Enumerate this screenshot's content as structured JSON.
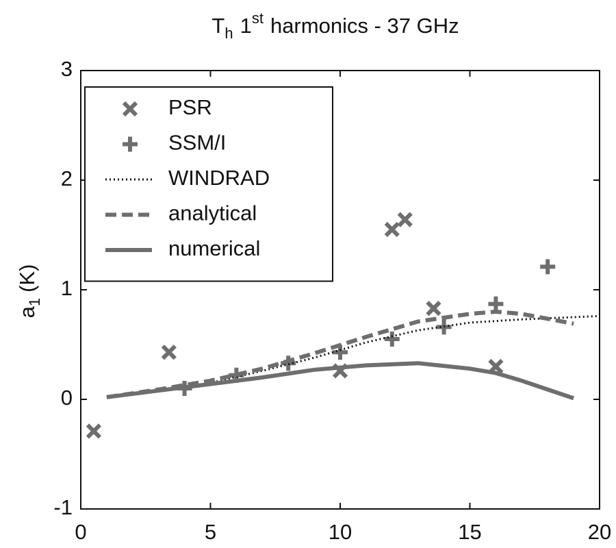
{
  "chart_data": {
    "type": "mixed",
    "title": [
      "T",
      "h",
      "1",
      "st",
      "harmonics - 37 GHz"
    ],
    "ylabel": [
      "a",
      "1",
      "(K)"
    ],
    "xlim": [
      0,
      20
    ],
    "xticks": [
      0,
      5,
      10,
      15,
      20
    ],
    "ylim": [
      -1,
      3
    ],
    "yticks": [
      -1,
      0,
      1,
      2,
      3
    ],
    "legend": "top-left",
    "series": [
      {
        "name": "PSR",
        "type": "scatter",
        "marker": "x",
        "color": "#6e6e6e",
        "x": [
          0.5,
          3.4,
          10,
          12,
          12.5,
          13.6,
          16
        ],
        "values": [
          -0.29,
          0.43,
          0.26,
          1.55,
          1.64,
          0.83,
          0.3
        ]
      },
      {
        "name": "SSM/I",
        "type": "scatter",
        "marker": "+",
        "color": "#6e6e6e",
        "x": [
          4,
          6,
          8,
          10,
          12,
          14,
          16,
          18
        ],
        "values": [
          0.1,
          0.22,
          0.33,
          0.43,
          0.55,
          0.66,
          0.87,
          1.21
        ]
      },
      {
        "name": "WINDRAD",
        "type": "line",
        "dash": "dotted",
        "color": "#111111",
        "x": [
          1,
          3,
          5,
          7,
          9,
          11,
          13,
          15,
          17,
          20
        ],
        "values": [
          0.02,
          0.08,
          0.15,
          0.26,
          0.38,
          0.52,
          0.63,
          0.7,
          0.73,
          0.76
        ]
      },
      {
        "name": "analytical",
        "type": "line",
        "dash": "dashed",
        "color": "#6e6e6e",
        "x": [
          1,
          3,
          5,
          7,
          9,
          11,
          13,
          15,
          16,
          17,
          19
        ],
        "values": [
          0.02,
          0.09,
          0.17,
          0.28,
          0.42,
          0.57,
          0.71,
          0.78,
          0.8,
          0.78,
          0.69
        ]
      },
      {
        "name": "numerical",
        "type": "line",
        "dash": "solid",
        "color": "#6e6e6e",
        "x": [
          1,
          3,
          5,
          7,
          9,
          11,
          13,
          15,
          16,
          17,
          18,
          19
        ],
        "values": [
          0.02,
          0.08,
          0.14,
          0.2,
          0.27,
          0.31,
          0.33,
          0.28,
          0.24,
          0.17,
          0.09,
          0.01
        ]
      }
    ]
  }
}
